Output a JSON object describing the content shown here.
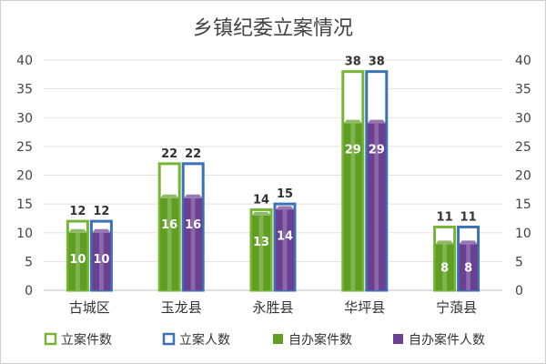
{
  "chart_data": {
    "type": "bar",
    "title": "乡镇纪委立案情况",
    "categories": [
      "古城区",
      "玉龙县",
      "永胜县",
      "华坪县",
      "宁蒗县"
    ],
    "series": [
      {
        "name": "立案件数",
        "values": [
          12,
          22,
          14,
          38,
          11
        ],
        "style": "outline",
        "color": "#77b536"
      },
      {
        "name": "立案人数",
        "values": [
          12,
          22,
          15,
          38,
          11
        ],
        "style": "outline",
        "color": "#3b72b5"
      },
      {
        "name": "自办案件数",
        "values": [
          10,
          16,
          13,
          29,
          8
        ],
        "style": "filled",
        "color": "#5f9e23"
      },
      {
        "name": "自办案件人数",
        "values": [
          10,
          16,
          14,
          29,
          8
        ],
        "style": "filled",
        "color": "#6b3f91"
      }
    ],
    "ylim": [
      0,
      40
    ],
    "yticks": [
      0,
      5,
      10,
      15,
      20,
      25,
      30,
      35,
      40
    ],
    "secondary_yticks": [
      0,
      5,
      10,
      15,
      20,
      25,
      30,
      35,
      40
    ],
    "grid": true,
    "legend_position": "bottom"
  }
}
